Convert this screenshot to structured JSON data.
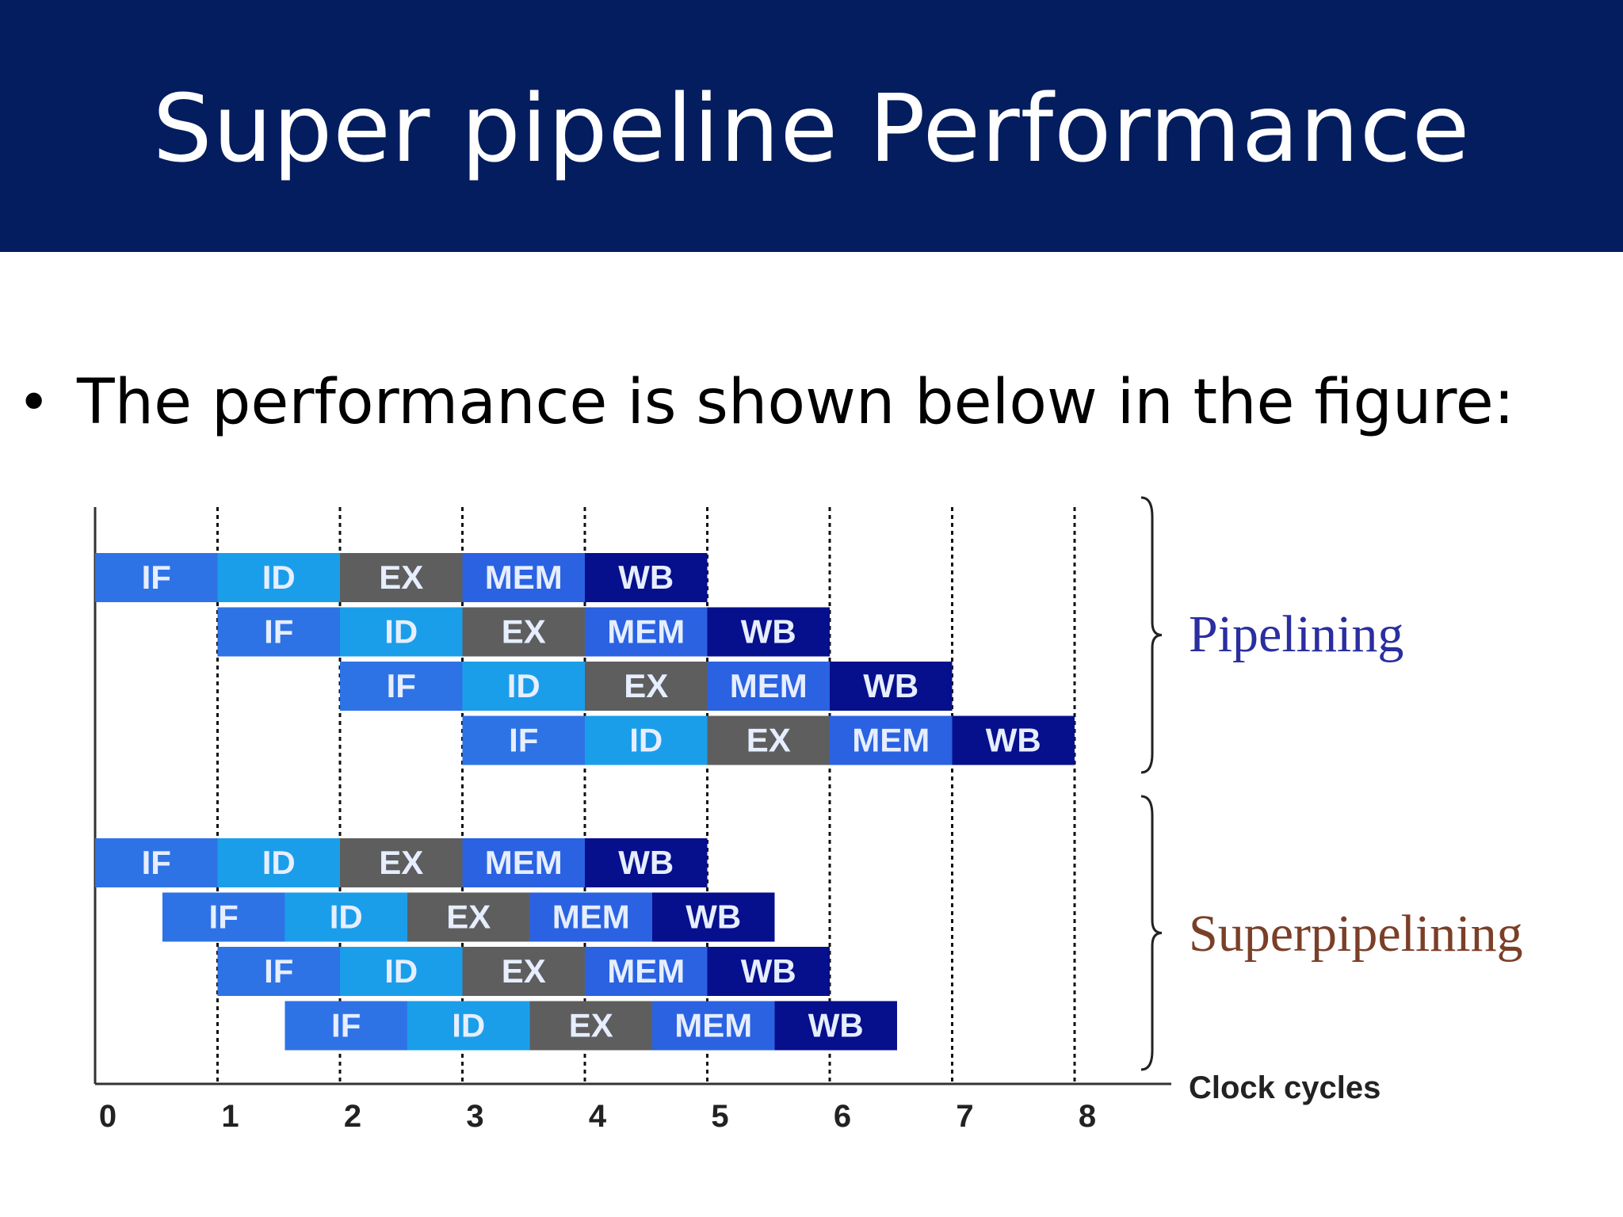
{
  "slide": {
    "title": "Super pipeline Performance",
    "bullet": "The performance is shown below in the figure:"
  },
  "colors": {
    "header_bg": "#031d5e",
    "IF": "#2e73e6",
    "ID": "#1b9eea",
    "EX": "#5e5e5e",
    "MEM": "#2a62e2",
    "WB": "#060f8c",
    "pipelining_label": "#2a2ea0",
    "superpipelining_label": "#7b3f28"
  },
  "chart_data": {
    "type": "timeline",
    "x_label": "Clock cycles",
    "x_ticks": [
      "0",
      "1",
      "2",
      "3",
      "4",
      "5",
      "6",
      "7",
      "8"
    ],
    "x_range": [
      0,
      8
    ],
    "stages": [
      "IF",
      "ID",
      "EX",
      "MEM",
      "WB"
    ],
    "groups": [
      {
        "label": "Pipelining",
        "stage_duration": 1,
        "instructions": [
          {
            "start": 0
          },
          {
            "start": 1
          },
          {
            "start": 2
          },
          {
            "start": 3
          }
        ]
      },
      {
        "label": "Superpipelining",
        "stage_duration": 1,
        "instructions": [
          {
            "start": 0
          },
          {
            "start": 0.55
          },
          {
            "start": 1
          },
          {
            "start": 1.55
          }
        ]
      }
    ]
  }
}
